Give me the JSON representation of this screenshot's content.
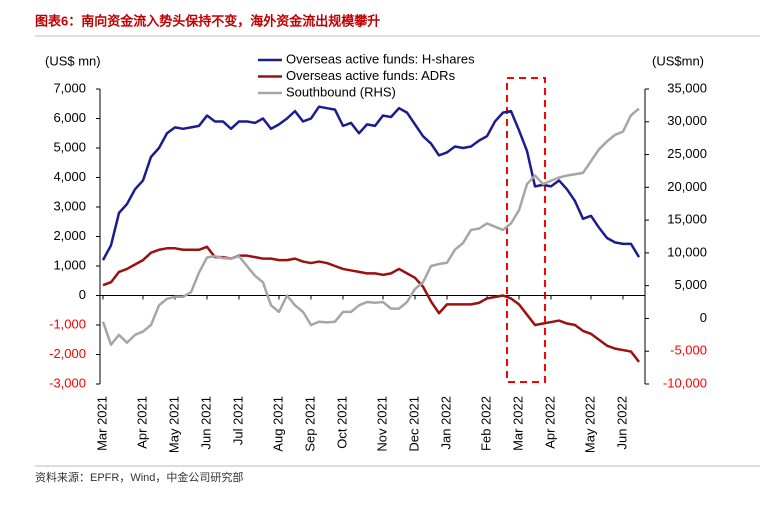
{
  "chart_data": {
    "type": "line",
    "title": "图表6：南向资金流入势头保持不变，海外资金流出规模攀升",
    "source": "资料来源：EPFR，Wind，中金公司研究部",
    "y_label": "(US$ mn)",
    "y2_label": "(US$mn)",
    "negative_tick_color": "#ff0000",
    "categories": [
      "Mar 2021",
      null,
      null,
      null,
      null,
      "Apr 2021",
      null,
      null,
      null,
      "May 2021",
      null,
      null,
      null,
      "Jun 2021",
      null,
      null,
      null,
      "Jul 2021",
      null,
      null,
      null,
      null,
      "Aug 2021",
      null,
      null,
      null,
      "Sep 2021",
      null,
      null,
      null,
      "Oct 2021",
      null,
      null,
      null,
      null,
      "Nov 2021",
      null,
      null,
      null,
      "Dec 2021",
      null,
      null,
      null,
      "Jan 2022",
      null,
      null,
      null,
      null,
      "Feb 2022",
      null,
      null,
      null,
      "Mar 2022",
      null,
      null,
      null,
      "Apr 2022",
      null,
      null,
      null,
      null,
      "May 2022",
      null,
      null,
      null,
      "Jun 2022",
      null,
      null
    ],
    "ylim": [
      -3000,
      7000
    ],
    "yticks": [
      {
        "value": -3000,
        "label": "-3,000"
      },
      {
        "value": -2000,
        "label": "-2,000"
      },
      {
        "value": -1000,
        "label": "-1,000"
      },
      0,
      {
        "value": 1000,
        "label": "1,000"
      },
      {
        "value": 2000,
        "label": "2,000"
      },
      {
        "value": 3000,
        "label": "3,000"
      },
      {
        "value": 4000,
        "label": "4,000"
      },
      {
        "value": 5000,
        "label": "5,000"
      },
      {
        "value": 6000,
        "label": "6,000"
      },
      {
        "value": 7000,
        "label": "7,000"
      }
    ],
    "y2lim": [
      -10000,
      35000
    ],
    "y2ticks": [
      {
        "value": -10000,
        "label": "-10,000"
      },
      {
        "value": -5000,
        "label": "-5,000"
      },
      0,
      {
        "value": 5000,
        "label": "5,000"
      },
      {
        "value": 10000,
        "label": "10,000"
      },
      {
        "value": 15000,
        "label": "15,000"
      },
      {
        "value": 20000,
        "label": "20,000"
      },
      {
        "value": 25000,
        "label": "25,000"
      },
      {
        "value": 30000,
        "label": "30,000"
      },
      {
        "value": 35000,
        "label": "35,000"
      }
    ],
    "series": [
      {
        "name": "Overseas active funds: H-shares",
        "color": "#1c1c8e",
        "values": [
          1200,
          1700,
          2800,
          3100,
          3600,
          3900,
          4700,
          5000,
          5500,
          5700,
          5650,
          5700,
          5750,
          6100,
          5900,
          5900,
          5650,
          5900,
          5900,
          5850,
          6000,
          5650,
          5800,
          6000,
          6250,
          5900,
          6000,
          6400,
          6350,
          6300,
          5750,
          5850,
          5500,
          5800,
          5750,
          6100,
          6050,
          6350,
          6200,
          5800,
          5400,
          5150,
          4750,
          4850,
          5050,
          5000,
          5050,
          5250,
          5400,
          5900,
          6200,
          6250,
          5600,
          4900,
          3700,
          3750,
          3700,
          3900,
          3600,
          3200,
          2600,
          2700,
          2300,
          1950,
          1800,
          1750,
          1750,
          1300
        ]
      },
      {
        "name": "Overseas active funds: ADRs",
        "color": "#9b1010",
        "values": [
          350,
          450,
          800,
          900,
          1050,
          1200,
          1450,
          1550,
          1600,
          1600,
          1550,
          1550,
          1550,
          1650,
          1300,
          1300,
          1250,
          1350,
          1350,
          1300,
          1250,
          1250,
          1200,
          1200,
          1250,
          1150,
          1100,
          1150,
          1100,
          1000,
          900,
          850,
          800,
          750,
          750,
          700,
          750,
          900,
          750,
          600,
          300,
          -200,
          -600,
          -300,
          -300,
          -300,
          -300,
          -250,
          -100,
          -50,
          0,
          -100,
          -300,
          -650,
          -1000,
          -950,
          -900,
          -850,
          -950,
          -1000,
          -1200,
          -1300,
          -1500,
          -1700,
          -1800,
          -1850,
          -1900,
          -2250
        ]
      },
      {
        "name": "Southbound (RHS)",
        "color": "#a6a6a6",
        "axis": "y2",
        "values": [
          -500,
          -4000,
          -2500,
          -3700,
          -2500,
          -2000,
          -1000,
          2000,
          3000,
          3300,
          3300,
          4000,
          7000,
          9300,
          9500,
          9200,
          9100,
          9500,
          8000,
          6500,
          5500,
          2000,
          1000,
          3500,
          2000,
          1000,
          -1000,
          -500,
          -600,
          -500,
          1000,
          1000,
          2000,
          2500,
          2400,
          2500,
          1500,
          1500,
          2500,
          4500,
          5500,
          8000,
          8300,
          8500,
          10500,
          11500,
          13500,
          13700,
          14500,
          14000,
          13500,
          14500,
          16500,
          20500,
          21800,
          20500,
          21000,
          21500,
          21800,
          22000,
          22200,
          24000,
          25800,
          27000,
          28000,
          28500,
          31000,
          32000
        ]
      }
    ]
  }
}
